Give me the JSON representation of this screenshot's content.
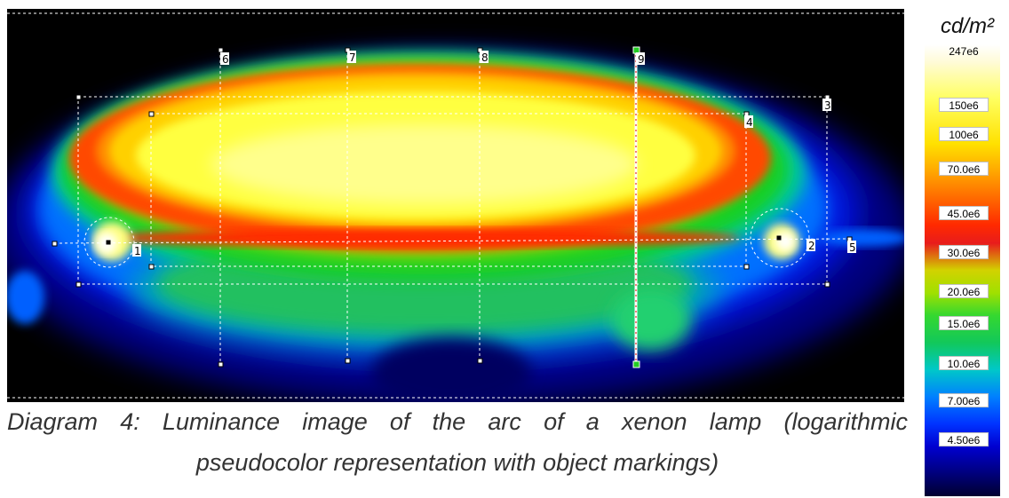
{
  "image": {
    "description_icon": "luminance-image",
    "markers": [
      {
        "id": "marker-1",
        "label": "1"
      },
      {
        "id": "marker-2",
        "label": "2"
      },
      {
        "id": "marker-3",
        "label": "3"
      },
      {
        "id": "marker-4",
        "label": "4"
      },
      {
        "id": "marker-5",
        "label": "5"
      },
      {
        "id": "marker-6",
        "label": "6"
      },
      {
        "id": "marker-7",
        "label": "7"
      },
      {
        "id": "marker-8",
        "label": "8"
      },
      {
        "id": "marker-9",
        "label": "9"
      }
    ]
  },
  "caption": {
    "line1": "Diagram 4: Luminance image of the arc of a xenon lamp (logarithmic",
    "line2": "pseudocolor  representation with object markings)"
  },
  "scale": {
    "unit": "cd/m²",
    "ticks": [
      "247e6",
      "150e6",
      "100e6",
      "70.0e6",
      "45.0e6",
      "30.0e6",
      "20.0e6",
      "15.0e6",
      "10.0e6",
      "7.00e6",
      "4.50e6"
    ]
  },
  "colors": {
    "background": "#000000",
    "marker_line": "#ffffff",
    "selected_marker": "#22cc22"
  }
}
